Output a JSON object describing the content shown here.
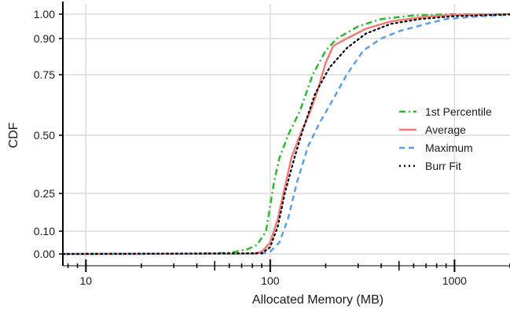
{
  "chart_data": {
    "type": "line",
    "title": "",
    "xlabel": "Allocated Memory (MB)",
    "ylabel": "CDF",
    "xscale": "log",
    "xlim": [
      7.5,
      2000
    ],
    "ylim": [
      -0.03,
      1.03
    ],
    "x_tick_labels": [
      {
        "value": 10,
        "label": "10"
      },
      {
        "value": 100,
        "label": "100"
      },
      {
        "value": 1000,
        "label": "1000"
      }
    ],
    "y_tick_labels": [
      {
        "value": 0.0,
        "label": "0.00"
      },
      {
        "value": 0.1,
        "label": "0.10"
      },
      {
        "value": 0.25,
        "label": "0.25"
      },
      {
        "value": 0.5,
        "label": "0.50"
      },
      {
        "value": 0.75,
        "label": "0.75"
      },
      {
        "value": 0.9,
        "label": "0.90"
      },
      {
        "value": 1.0,
        "label": "1.00"
      }
    ],
    "y_scale_note": "probability-transformed (Burr-style) y axis",
    "grid": true,
    "legend_position": "right",
    "series": [
      {
        "name": "1st Percentile",
        "color": "#2db82d",
        "dash": "dashdot",
        "points": [
          [
            7.5,
            0.0
          ],
          [
            40,
            0.001
          ],
          [
            60,
            0.005
          ],
          [
            75,
            0.02
          ],
          [
            85,
            0.04
          ],
          [
            95,
            0.1
          ],
          [
            100,
            0.2
          ],
          [
            105,
            0.3
          ],
          [
            112,
            0.4
          ],
          [
            125,
            0.5
          ],
          [
            145,
            0.6
          ],
          [
            170,
            0.75
          ],
          [
            200,
            0.85
          ],
          [
            230,
            0.9
          ],
          [
            300,
            0.95
          ],
          [
            400,
            0.98
          ],
          [
            600,
            0.995
          ],
          [
            900,
            0.999
          ],
          [
            2000,
            1.0
          ]
        ]
      },
      {
        "name": "Average",
        "color": "#f07c76",
        "dash": "solid",
        "points": [
          [
            7.5,
            0.0
          ],
          [
            80,
            0.001
          ],
          [
            90,
            0.01
          ],
          [
            100,
            0.05
          ],
          [
            110,
            0.15
          ],
          [
            118,
            0.25
          ],
          [
            130,
            0.4
          ],
          [
            145,
            0.5
          ],
          [
            165,
            0.6
          ],
          [
            180,
            0.68
          ],
          [
            200,
            0.8
          ],
          [
            220,
            0.87
          ],
          [
            260,
            0.9
          ],
          [
            330,
            0.94
          ],
          [
            450,
            0.97
          ],
          [
            700,
            0.99
          ],
          [
            1000,
            0.997
          ],
          [
            2000,
            1.0
          ]
        ]
      },
      {
        "name": "Maximum",
        "color": "#5a9ee8",
        "dash": "dashed",
        "points": [
          [
            7.5,
            0.0
          ],
          [
            90,
            0.001
          ],
          [
            100,
            0.01
          ],
          [
            112,
            0.05
          ],
          [
            125,
            0.15
          ],
          [
            140,
            0.3
          ],
          [
            160,
            0.45
          ],
          [
            185,
            0.55
          ],
          [
            220,
            0.65
          ],
          [
            260,
            0.75
          ],
          [
            320,
            0.85
          ],
          [
            400,
            0.9
          ],
          [
            500,
            0.93
          ],
          [
            700,
            0.96
          ],
          [
            900,
            0.98
          ],
          [
            1300,
            0.99
          ],
          [
            2000,
            0.998
          ]
        ]
      },
      {
        "name": "Burr Fit",
        "color": "#000000",
        "dash": "dotted",
        "points": [
          [
            7.5,
            0.0
          ],
          [
            90,
            0.003
          ],
          [
            100,
            0.03
          ],
          [
            110,
            0.12
          ],
          [
            120,
            0.25
          ],
          [
            135,
            0.4
          ],
          [
            150,
            0.52
          ],
          [
            175,
            0.67
          ],
          [
            210,
            0.78
          ],
          [
            260,
            0.86
          ],
          [
            330,
            0.92
          ],
          [
            450,
            0.96
          ],
          [
            650,
            0.98
          ],
          [
            1000,
            0.992
          ],
          [
            2000,
            0.999
          ]
        ]
      }
    ]
  }
}
